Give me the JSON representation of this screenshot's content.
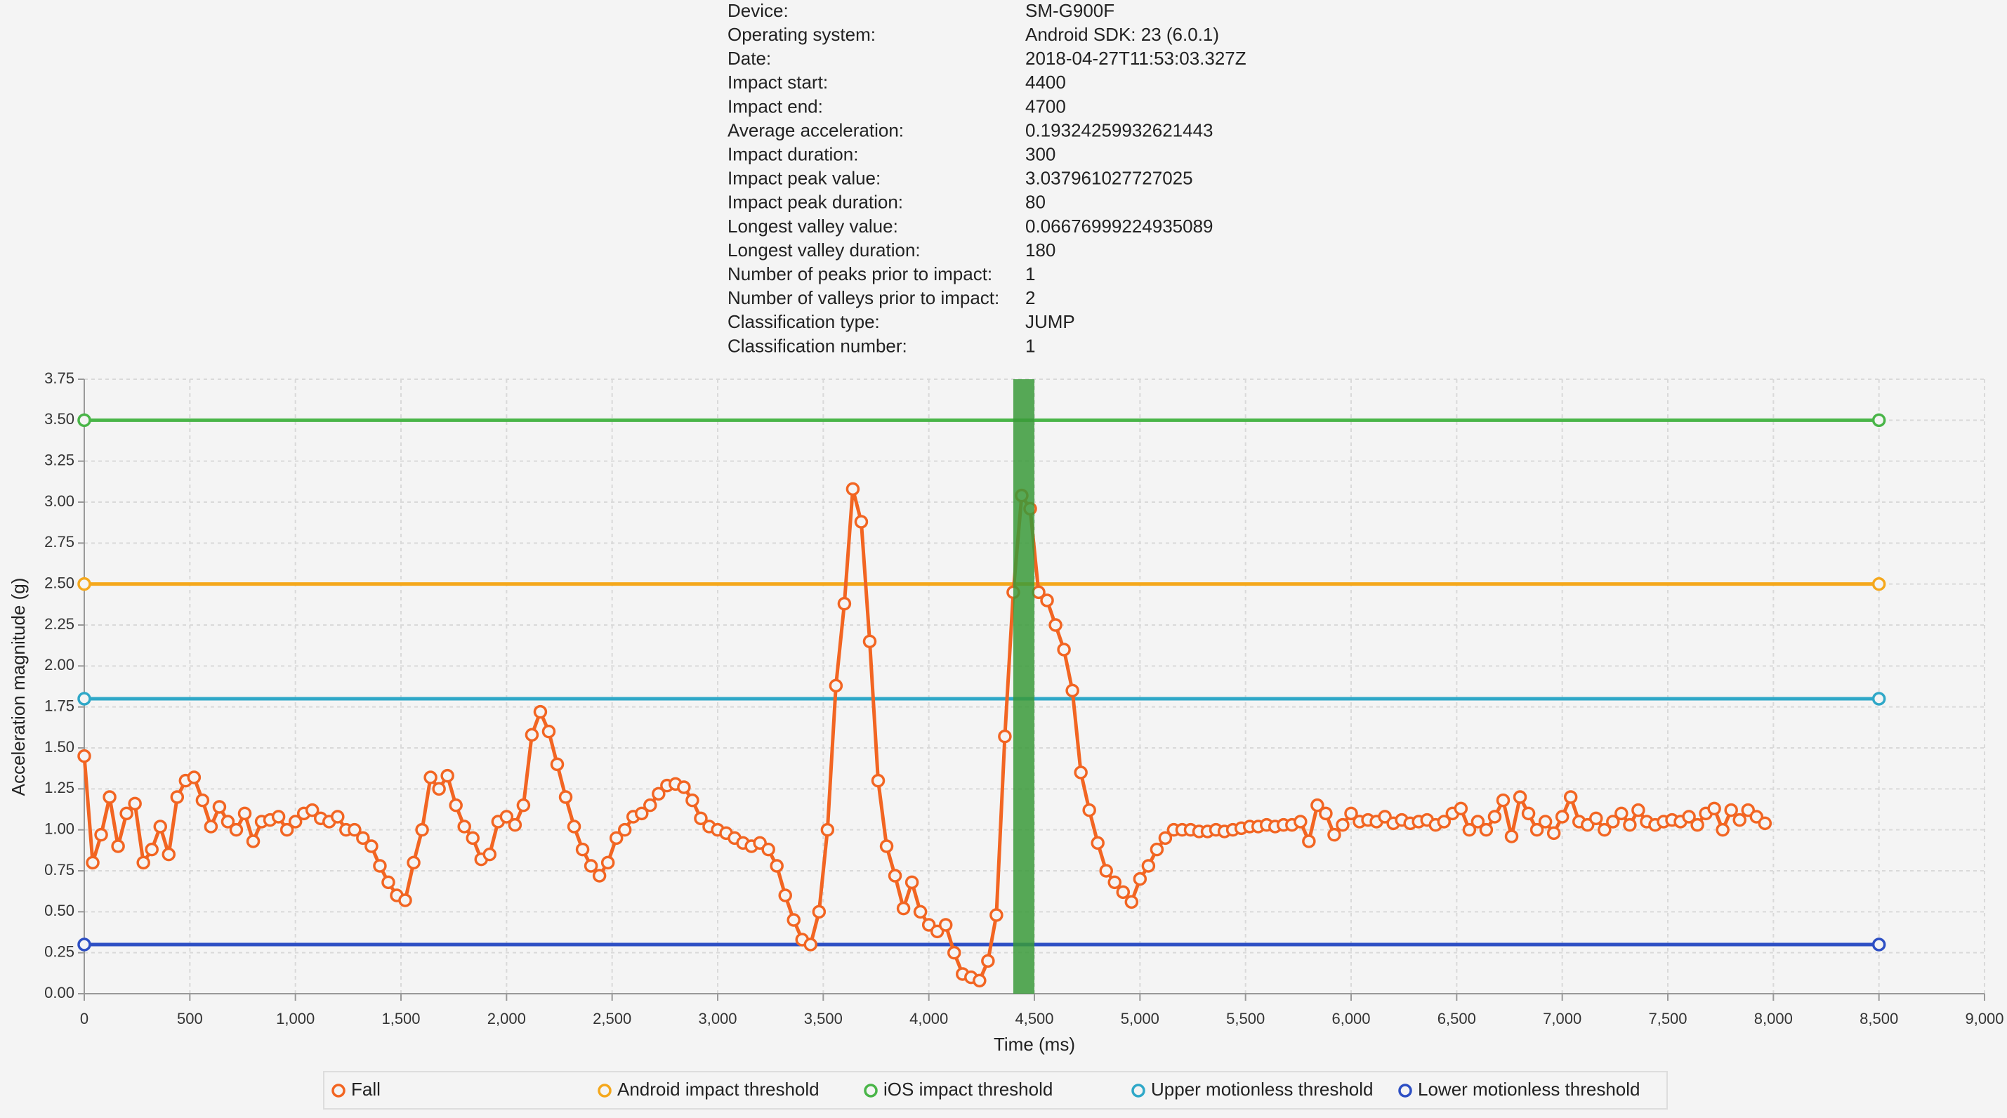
{
  "info": {
    "rows": [
      [
        "Device:",
        "SM-G900F"
      ],
      [
        "Operating system:",
        "Android SDK: 23 (6.0.1)"
      ],
      [
        "Date:",
        "2018-04-27T11:53:03.327Z"
      ],
      [
        "Impact start:",
        "4400"
      ],
      [
        "Impact end:",
        "4700"
      ],
      [
        "Average acceleration:",
        "0.19324259932621443"
      ],
      [
        "Impact duration:",
        "300"
      ],
      [
        "Impact peak value:",
        "3.037961027727025"
      ],
      [
        "Impact peak duration:",
        "80"
      ],
      [
        "Longest valley value:",
        "0.06676999224935089"
      ],
      [
        "Longest valley duration:",
        "180"
      ],
      [
        "Number of peaks prior to impact:",
        "1"
      ],
      [
        "Number of valleys prior to impact:",
        "2"
      ],
      [
        "Classification type:",
        "JUMP"
      ],
      [
        "Classification number:",
        "1"
      ]
    ]
  },
  "chart_data": {
    "type": "line",
    "x_label": "Time (ms)",
    "y_label": "Acceleration magnitude (g)",
    "xlim": [
      0,
      9000
    ],
    "ylim": [
      0,
      3.75
    ],
    "xticks": [
      0,
      500,
      {
        "value": 1000,
        "label": "1,000"
      },
      {
        "value": 1500,
        "label": "1,500"
      },
      {
        "value": 2000,
        "label": "2,000"
      },
      {
        "value": 2500,
        "label": "2,500"
      },
      {
        "value": 3000,
        "label": "3,000"
      },
      {
        "value": 3500,
        "label": "3,500"
      },
      {
        "value": 4000,
        "label": "4,000"
      },
      {
        "value": 4500,
        "label": "4,500"
      },
      {
        "value": 5000,
        "label": "5,000"
      },
      {
        "value": 5500,
        "label": "5,500"
      },
      {
        "value": 6000,
        "label": "6,000"
      },
      {
        "value": 6500,
        "label": "6,500"
      },
      {
        "value": 7000,
        "label": "7,000"
      },
      {
        "value": 7500,
        "label": "7,500"
      },
      {
        "value": 8000,
        "label": "8,000"
      },
      {
        "value": 8500,
        "label": "8,500"
      },
      {
        "value": 9000,
        "label": "9,000"
      }
    ],
    "yticks": [
      {
        "value": 0,
        "label": "0.00"
      },
      0.25,
      {
        "value": 0.5,
        "label": "0.50"
      },
      0.75,
      {
        "value": 1,
        "label": "1.00"
      },
      1.25,
      {
        "value": 1.5,
        "label": "1.50"
      },
      1.75,
      {
        "value": 2,
        "label": "2.00"
      },
      2.25,
      {
        "value": 2.5,
        "label": "2.50"
      },
      2.75,
      {
        "value": 3,
        "label": "3.00"
      },
      3.25,
      {
        "value": 3.5,
        "label": "3.50"
      },
      3.75
    ],
    "grid": true,
    "markers": true,
    "legend": "bottom",
    "highlight": {
      "xlim": [
        4400,
        4500
      ],
      "color": "#3a9a3a"
    },
    "series": [
      {
        "name": "Fall",
        "color": "#f26522",
        "x": [
          0,
          40,
          80,
          120,
          160,
          200,
          240,
          280,
          320,
          360,
          400,
          440,
          480,
          520,
          560,
          600,
          640,
          680,
          720,
          760,
          800,
          840,
          880,
          920,
          960,
          1000,
          1040,
          1080,
          1120,
          1160,
          1200,
          1240,
          1280,
          1320,
          1360,
          1400,
          1440,
          1480,
          1520,
          1560,
          1600,
          1640,
          1680,
          1720,
          1760,
          1800,
          1840,
          1880,
          1920,
          1960,
          2000,
          2040,
          2080,
          2120,
          2160,
          2200,
          2240,
          2280,
          2320,
          2360,
          2400,
          2440,
          2480,
          2520,
          2560,
          2600,
          2640,
          2680,
          2720,
          2760,
          2800,
          2840,
          2880,
          2920,
          2960,
          3000,
          3040,
          3080,
          3120,
          3160,
          3200,
          3240,
          3280,
          3320,
          3360,
          3400,
          3440,
          3480,
          3520,
          3560,
          3600,
          3640,
          3680,
          3720,
          3760,
          3800,
          3840,
          3880,
          3920,
          3960,
          4000,
          4040,
          4080,
          4120,
          4160,
          4200,
          4240,
          4280,
          4320,
          4360,
          4400,
          4440,
          4480,
          4520,
          4560,
          4600,
          4640,
          4680,
          4720,
          4760,
          4800,
          4840,
          4880,
          4920,
          4960,
          5000,
          5040,
          5080,
          5120,
          5160,
          5200,
          5240,
          5280,
          5320,
          5360,
          5400,
          5440,
          5480,
          5520,
          5560,
          5600,
          5640,
          5680,
          5720,
          5760,
          5800,
          5840,
          5880,
          5920,
          5960,
          6000,
          6040,
          6080,
          6120,
          6160,
          6200,
          6240,
          6280,
          6320,
          6360,
          6400,
          6440,
          6480,
          6520,
          6560,
          6600,
          6640,
          6680,
          6720,
          6760,
          6800,
          6840,
          6880,
          6920,
          6960,
          7000,
          7040,
          7080,
          7120,
          7160,
          7200,
          7240,
          7280,
          7320,
          7360,
          7400,
          7440,
          7480,
          7520,
          7560,
          7600,
          7640,
          7680,
          7720,
          7760,
          7800,
          7840,
          7880,
          7920,
          7960
        ],
        "values": [
          1.45,
          0.8,
          0.97,
          1.2,
          0.9,
          1.1,
          1.16,
          0.8,
          0.88,
          1.02,
          0.85,
          1.2,
          1.3,
          1.32,
          1.18,
          1.02,
          1.14,
          1.05,
          1.0,
          1.1,
          0.93,
          1.05,
          1.06,
          1.08,
          1.0,
          1.05,
          1.1,
          1.12,
          1.07,
          1.05,
          1.08,
          1.0,
          1.0,
          0.95,
          0.9,
          0.78,
          0.68,
          0.6,
          0.57,
          0.8,
          1.0,
          1.32,
          1.25,
          1.33,
          1.15,
          1.02,
          0.95,
          0.82,
          0.85,
          1.05,
          1.08,
          1.03,
          1.15,
          1.58,
          1.72,
          1.6,
          1.4,
          1.2,
          1.02,
          0.88,
          0.78,
          0.72,
          0.8,
          0.95,
          1.0,
          1.08,
          1.1,
          1.15,
          1.22,
          1.27,
          1.28,
          1.26,
          1.18,
          1.07,
          1.02,
          1.0,
          0.98,
          0.95,
          0.92,
          0.9,
          0.92,
          0.88,
          0.78,
          0.6,
          0.45,
          0.33,
          0.3,
          0.5,
          1.0,
          1.88,
          2.38,
          3.08,
          2.88,
          2.15,
          1.3,
          0.9,
          0.72,
          0.52,
          0.68,
          0.5,
          0.42,
          0.38,
          0.42,
          0.25,
          0.12,
          0.1,
          0.08,
          0.2,
          0.48,
          1.57,
          2.45,
          3.04,
          2.96,
          2.45,
          2.4,
          2.25,
          2.1,
          1.85,
          1.35,
          1.12,
          0.92,
          0.75,
          0.68,
          0.62,
          0.56,
          0.7,
          0.78,
          0.88,
          0.95,
          1.0,
          1.0,
          1.0,
          0.99,
          0.99,
          1.0,
          0.99,
          1.0,
          1.01,
          1.02,
          1.02,
          1.03,
          1.02,
          1.03,
          1.03,
          1.05,
          0.93,
          1.15,
          1.1,
          0.97,
          1.03,
          1.1,
          1.05,
          1.06,
          1.05,
          1.08,
          1.04,
          1.06,
          1.04,
          1.05,
          1.06,
          1.03,
          1.05,
          1.1,
          1.13,
          1.0,
          1.05,
          1.0,
          1.08,
          1.18,
          0.96,
          1.2,
          1.1,
          1.0,
          1.05,
          0.98,
          1.08,
          1.2,
          1.05,
          1.03,
          1.07,
          1.0,
          1.05,
          1.1,
          1.03,
          1.12,
          1.05,
          1.03,
          1.05,
          1.06,
          1.05,
          1.08,
          1.03,
          1.1,
          1.13,
          1.0,
          1.12,
          1.06,
          1.12,
          1.08,
          1.04
        ]
      },
      {
        "name": "Android impact threshold",
        "color": "#f5a81c",
        "x": [
          0,
          8500
        ],
        "values": [
          2.5,
          2.5
        ]
      },
      {
        "name": "iOS impact threshold",
        "color": "#49b548",
        "x": [
          0,
          8500
        ],
        "values": [
          3.5,
          3.5
        ]
      },
      {
        "name": "Upper motionless threshold",
        "color": "#2fa8c8",
        "x": [
          0,
          8500
        ],
        "values": [
          1.8,
          1.8
        ]
      },
      {
        "name": "Lower motionless threshold",
        "color": "#2d4fc4",
        "x": [
          0,
          8500
        ],
        "values": [
          0.3,
          0.3
        ]
      }
    ]
  }
}
